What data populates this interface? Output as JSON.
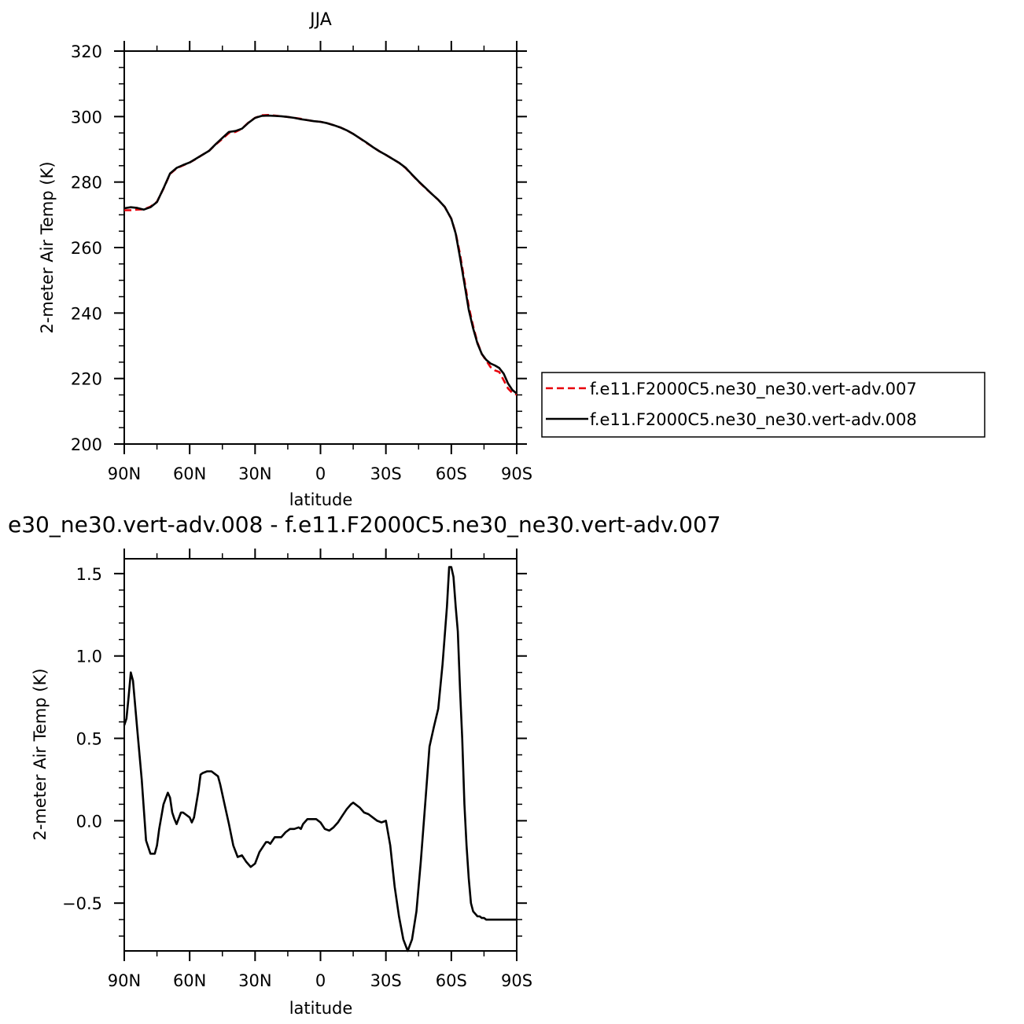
{
  "chart_data": [
    {
      "type": "line",
      "title": "JJA",
      "xlabel": "latitude",
      "ylabel": "2-meter Air Temp (K)",
      "xticks": [
        "90N",
        "60N",
        "30N",
        "0",
        "30S",
        "60S",
        "90S"
      ],
      "xtick_values": [
        90,
        60,
        30,
        0,
        -30,
        -60,
        -90
      ],
      "xlim": [
        90,
        -90
      ],
      "ylim": [
        200,
        320
      ],
      "yticks": [
        200,
        220,
        240,
        260,
        280,
        300,
        320
      ],
      "ytick_labels": [
        "200",
        "220",
        "240",
        "260",
        "280",
        "300",
        "320"
      ],
      "grid": false,
      "legend_position": "right, outside plot",
      "series": [
        {
          "name": "f.e11.F2000C5.ne30_ne30.vert-adv.007",
          "color": "#e8000b",
          "dash": "dashed",
          "x": [
            90,
            87,
            84,
            81,
            78,
            75,
            72,
            69,
            66,
            63,
            60,
            57,
            54,
            51,
            48,
            45,
            42,
            39,
            36,
            33,
            30,
            27,
            24,
            21,
            18,
            15,
            12,
            9,
            6,
            3,
            0,
            -3,
            -6,
            -9,
            -12,
            -15,
            -18,
            -21,
            -24,
            -27,
            -30,
            -33,
            -36,
            -39,
            -42,
            -45,
            -48,
            -51,
            -54,
            -57,
            -60,
            -62,
            -64,
            -66,
            -68,
            -70,
            -72,
            -74,
            -76,
            -78,
            -80,
            -82,
            -84,
            -86,
            -88,
            -90
          ],
          "y": [
            271.4,
            271.4,
            271.6,
            271.7,
            272.5,
            274,
            278,
            282.5,
            284.2,
            285.1,
            286,
            287.1,
            288.4,
            289.6,
            291.5,
            293.2,
            295,
            295.3,
            296.3,
            298.2,
            299.6,
            300.4,
            300.5,
            300.3,
            300.1,
            299.9,
            299.6,
            299.3,
            298.9,
            298.6,
            298.4,
            298,
            297.4,
            296.7,
            295.8,
            294.7,
            293.4,
            292,
            290.7,
            289.4,
            288.3,
            287.1,
            285.9,
            284.3,
            282.2,
            280.1,
            278.2,
            276.4,
            274.6,
            272.4,
            268.8,
            264.5,
            258,
            250,
            242,
            236,
            231,
            227.5,
            225.5,
            223.5,
            222.5,
            222,
            219.5,
            217,
            215.6,
            215.1
          ]
        },
        {
          "name": "f.e11.F2000C5.ne30_ne30.vert-adv.008",
          "color": "#000000",
          "dash": "solid",
          "x": [
            90,
            87,
            84,
            81,
            78,
            75,
            72,
            69,
            66,
            63,
            60,
            57,
            54,
            51,
            48,
            45,
            42,
            39,
            36,
            33,
            30,
            27,
            24,
            21,
            18,
            15,
            12,
            9,
            6,
            3,
            0,
            -3,
            -6,
            -9,
            -12,
            -15,
            -18,
            -21,
            -24,
            -27,
            -30,
            -33,
            -36,
            -39,
            -42,
            -45,
            -48,
            -51,
            -54,
            -57,
            -60,
            -62,
            -64,
            -66,
            -68,
            -70,
            -72,
            -74,
            -76,
            -78,
            -80,
            -82,
            -84,
            -86,
            -88,
            -90
          ],
          "y": [
            272,
            272.3,
            272.1,
            271.6,
            272.3,
            273.9,
            278.1,
            282.6,
            284.3,
            285.2,
            286,
            287.2,
            288.4,
            289.6,
            291.6,
            293.5,
            295.3,
            295.6,
            296.3,
            298.1,
            299.6,
            300.2,
            300.3,
            300.2,
            300.1,
            299.9,
            299.6,
            299.2,
            298.9,
            298.6,
            298.4,
            298,
            297.4,
            296.7,
            295.8,
            294.7,
            293.4,
            292.1,
            290.7,
            289.4,
            288.3,
            287.1,
            285.9,
            284.4,
            282.3,
            280.2,
            278.3,
            276.4,
            274.6,
            272.4,
            268.8,
            264.3,
            257,
            249,
            241,
            235.3,
            230.7,
            227.5,
            225.7,
            224.6,
            224,
            223.2,
            221.5,
            218.5,
            216.5,
            215.4
          ]
        }
      ]
    },
    {
      "type": "line",
      "title": "e30_ne30.vert-adv.008 - f.e11.F2000C5.ne30_ne30.vert-adv.007",
      "xlabel": "latitude",
      "ylabel": "2-meter Air Temp (K)",
      "xticks": [
        "90N",
        "60N",
        "30N",
        "0",
        "30S",
        "60S",
        "90S"
      ],
      "xtick_values": [
        90,
        60,
        30,
        0,
        -30,
        -60,
        -90
      ],
      "xlim": [
        90,
        -90
      ],
      "ylim": [
        -0.79,
        1.59
      ],
      "yticks": [
        -0.5,
        0,
        0.5,
        1,
        1.5
      ],
      "ytick_labels": [
        "-0.5",
        "0.0",
        "0.5",
        "1.0",
        "1.5"
      ],
      "grid": false,
      "series": [
        {
          "color": "#000000",
          "dash": "solid",
          "x": [
            90,
            89,
            88,
            87,
            86,
            84,
            82,
            80,
            78,
            76,
            75,
            74,
            72,
            70,
            69,
            68,
            67,
            66,
            64,
            63,
            62,
            60,
            59,
            58,
            57,
            56,
            55,
            54,
            52,
            50,
            48,
            47,
            46,
            44,
            42,
            40,
            38,
            36,
            34,
            32,
            30,
            28,
            26,
            25,
            24,
            23,
            22,
            21,
            20,
            18,
            16,
            14,
            12,
            10,
            9,
            8,
            6,
            4,
            2,
            0,
            -2,
            -4,
            -6,
            -8,
            -10,
            -12,
            -14,
            -15,
            -16,
            -18,
            -20,
            -22,
            -24,
            -26,
            -28,
            -30,
            -32,
            -34,
            -36,
            -38,
            -40,
            -42,
            -44,
            -46,
            -48,
            -50,
            -52,
            -54,
            -56,
            -58,
            -59,
            -60,
            -61,
            -62,
            -63,
            -64,
            -65,
            -66,
            -67,
            -68,
            -69,
            -70,
            -72,
            -73,
            -74,
            -75,
            -76,
            -77,
            -78,
            -79,
            -80,
            -80.5,
            -81,
            -81.5,
            -82,
            -83,
            -84,
            -85,
            -86,
            -87,
            -88,
            -89,
            -90
          ],
          "y": [
            0.58,
            0.62,
            0.75,
            0.9,
            0.85,
            0.55,
            0.25,
            -0.12,
            -0.2,
            -0.2,
            -0.15,
            -0.05,
            0.1,
            0.17,
            0.14,
            0.05,
            0.01,
            -0.02,
            0.05,
            0.05,
            0.04,
            0.02,
            -0.01,
            0.02,
            0.1,
            0.18,
            0.28,
            0.29,
            0.3,
            0.3,
            0.28,
            0.27,
            0.22,
            0.1,
            -0.02,
            -0.15,
            -0.22,
            -0.21,
            -0.25,
            -0.28,
            -0.26,
            -0.19,
            -0.15,
            -0.13,
            -0.13,
            -0.14,
            -0.12,
            -0.1,
            -0.1,
            -0.1,
            -0.07,
            -0.05,
            -0.05,
            -0.04,
            -0.05,
            -0.02,
            0.01,
            0.01,
            0.01,
            -0.01,
            -0.05,
            -0.06,
            -0.04,
            -0.01,
            0.03,
            0.07,
            0.1,
            0.11,
            0.1,
            0.08,
            0.05,
            0.04,
            0.02,
            0,
            -0.01,
            0,
            -0.15,
            -0.4,
            -0.58,
            -0.72,
            -0.79,
            -0.72,
            -0.55,
            -0.25,
            0.1,
            0.45,
            0.57,
            0.68,
            0.95,
            1.3,
            1.54,
            1.54,
            1.48,
            1.3,
            1.15,
            0.8,
            0.5,
            0.1,
            -0.15,
            -0.35,
            -0.5,
            -0.55,
            -0.58,
            -0.58,
            -0.59,
            -0.59,
            -0.6,
            -0.6,
            -0.6,
            -0.6,
            -0.6,
            -0.6,
            -0.6,
            -0.6,
            -0.6,
            -0.6,
            -0.6,
            -0.6,
            -0.6,
            -0.6,
            -0.6,
            -0.6,
            -0.6
          ]
        }
      ]
    }
  ]
}
